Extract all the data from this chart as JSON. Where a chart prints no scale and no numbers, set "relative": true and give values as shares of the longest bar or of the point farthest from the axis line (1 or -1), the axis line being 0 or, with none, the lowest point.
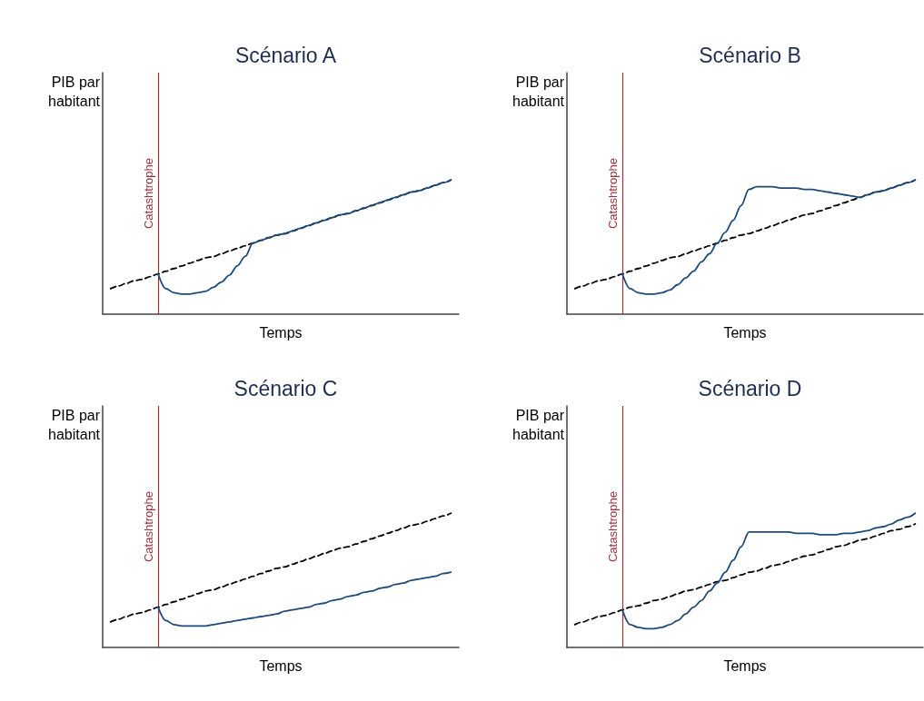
{
  "chart_data": [
    {
      "type": "line",
      "title": "Scénario A",
      "xlabel": "Temps",
      "ylabel": "PIB par\nhabitant",
      "relative": true,
      "marker": "none",
      "grid": false,
      "categories": [
        null,
        null,
        null,
        null,
        null,
        null,
        null,
        null,
        null,
        null,
        null,
        null,
        null,
        null,
        null,
        null,
        null,
        null,
        null,
        null,
        null,
        null,
        null,
        null,
        null,
        null,
        null,
        null,
        null,
        null,
        null,
        null,
        null,
        null,
        null,
        null,
        null,
        null,
        null,
        null,
        null,
        null,
        null,
        null,
        null,
        null
      ],
      "annotations": [
        "Catashtrophe"
      ],
      "series": [
        {
          "color": "#1d4a78",
          "line_style": "solid",
          "values": [
            null,
            null,
            null,
            null,
            null,
            null,
            null,
            0.3,
            0.19,
            0.16,
            0.15,
            0.15,
            0.16,
            0.17,
            0.2,
            0.24,
            0.29,
            0.36,
            0.43,
            0.53,
            0.55,
            0.57,
            0.59,
            0.6,
            0.62,
            0.64,
            0.66,
            0.68,
            0.7,
            0.72,
            0.74,
            0.75,
            0.77,
            0.79,
            0.81,
            0.83,
            0.85,
            0.87,
            0.89,
            0.91,
            0.92,
            0.94,
            0.96,
            0.98,
            1,
            null
          ]
        },
        {
          "color": "#000000",
          "line_style": "dashed",
          "values": [
            null,
            0.19,
            0.21,
            0.23,
            0.25,
            0.26,
            0.28,
            0.3,
            0.32,
            0.34,
            0.36,
            0.38,
            0.4,
            0.42,
            0.43,
            0.45,
            0.47,
            0.49,
            0.51,
            0.53,
            0.55,
            0.57,
            0.59,
            0.6,
            0.62,
            0.64,
            0.66,
            0.68,
            0.7,
            0.72,
            0.74,
            0.75,
            0.77,
            0.79,
            0.81,
            0.83,
            0.85,
            0.87,
            0.89,
            0.91,
            0.92,
            0.94,
            0.96,
            0.98,
            1,
            null
          ]
        }
      ]
    },
    {
      "type": "line",
      "title": "Scénario B",
      "xlabel": "Temps",
      "ylabel": "PIB par\nhabitant",
      "relative": true,
      "marker": "none",
      "grid": false,
      "categories": [
        null,
        null,
        null,
        null,
        null,
        null,
        null,
        null,
        null,
        null,
        null,
        null,
        null,
        null,
        null,
        null,
        null,
        null,
        null,
        null,
        null,
        null,
        null,
        null,
        null,
        null,
        null,
        null,
        null,
        null,
        null,
        null,
        null,
        null,
        null,
        null,
        null,
        null,
        null,
        null,
        null,
        null,
        null,
        null,
        null,
        null
      ],
      "annotations": [
        "Catashtrophe"
      ],
      "series": [
        {
          "color": "#1d4a78",
          "line_style": "solid",
          "values": [
            null,
            null,
            null,
            null,
            null,
            null,
            null,
            0.3,
            0.19,
            0.16,
            0.15,
            0.15,
            0.16,
            0.18,
            0.22,
            0.27,
            0.32,
            0.39,
            0.45,
            0.53,
            0.61,
            0.7,
            0.81,
            0.93,
            0.95,
            0.95,
            0.95,
            0.94,
            0.94,
            0.94,
            0.93,
            0.93,
            0.92,
            0.91,
            0.9,
            0.89,
            0.88,
            0.87,
            0.89,
            0.91,
            0.92,
            0.94,
            0.96,
            0.98,
            1,
            null
          ]
        },
        {
          "color": "#000000",
          "line_style": "dashed",
          "values": [
            null,
            0.19,
            0.21,
            0.23,
            0.25,
            0.26,
            0.28,
            0.3,
            0.32,
            0.34,
            0.36,
            0.38,
            0.4,
            0.42,
            0.43,
            0.45,
            0.47,
            0.49,
            0.51,
            0.53,
            0.55,
            0.57,
            0.59,
            0.6,
            0.62,
            0.64,
            0.66,
            0.68,
            0.7,
            0.72,
            0.74,
            0.75,
            0.77,
            0.79,
            0.81,
            0.83,
            0.85,
            0.87,
            0.89,
            0.91,
            0.92,
            0.94,
            0.96,
            0.98,
            1,
            null
          ]
        }
      ]
    },
    {
      "type": "line",
      "title": "Scénario C",
      "xlabel": "Temps",
      "ylabel": "PIB par\nhabitant",
      "relative": true,
      "marker": "none",
      "grid": false,
      "categories": [
        null,
        null,
        null,
        null,
        null,
        null,
        null,
        null,
        null,
        null,
        null,
        null,
        null,
        null,
        null,
        null,
        null,
        null,
        null,
        null,
        null,
        null,
        null,
        null,
        null,
        null,
        null,
        null,
        null,
        null,
        null,
        null,
        null,
        null,
        null,
        null,
        null,
        null,
        null,
        null,
        null,
        null,
        null,
        null,
        null,
        null
      ],
      "annotations": [
        "Catashtrophe"
      ],
      "series": [
        {
          "color": "#1d4a78",
          "line_style": "solid",
          "values": [
            null,
            null,
            null,
            null,
            null,
            null,
            null,
            0.3,
            0.2,
            0.17,
            0.16,
            0.16,
            0.16,
            0.16,
            0.17,
            0.18,
            0.19,
            0.2,
            0.21,
            0.22,
            0.23,
            0.24,
            0.25,
            0.27,
            0.28,
            0.29,
            0.3,
            0.32,
            0.33,
            0.35,
            0.36,
            0.38,
            0.39,
            0.41,
            0.42,
            0.44,
            0.45,
            0.47,
            0.48,
            0.5,
            0.51,
            0.52,
            0.53,
            0.55,
            0.56,
            null
          ]
        },
        {
          "color": "#000000",
          "line_style": "dashed",
          "values": [
            null,
            0.19,
            0.21,
            0.23,
            0.25,
            0.26,
            0.28,
            0.3,
            0.32,
            0.34,
            0.36,
            0.38,
            0.4,
            0.42,
            0.43,
            0.45,
            0.47,
            0.49,
            0.51,
            0.53,
            0.55,
            0.57,
            0.59,
            0.6,
            0.62,
            0.64,
            0.66,
            0.68,
            0.7,
            0.72,
            0.74,
            0.75,
            0.77,
            0.79,
            0.81,
            0.83,
            0.85,
            0.87,
            0.89,
            0.91,
            0.92,
            0.94,
            0.96,
            0.98,
            1,
            null
          ]
        }
      ]
    },
    {
      "type": "line",
      "title": "Scénario D",
      "xlabel": "Temps",
      "ylabel": "PIB par\nhabitant",
      "relative": true,
      "marker": "none",
      "grid": false,
      "categories": [
        null,
        null,
        null,
        null,
        null,
        null,
        null,
        null,
        null,
        null,
        null,
        null,
        null,
        null,
        null,
        null,
        null,
        null,
        null,
        null,
        null,
        null,
        null,
        null,
        null,
        null,
        null,
        null,
        null,
        null,
        null,
        null,
        null,
        null,
        null,
        null,
        null,
        null,
        null,
        null,
        null,
        null,
        null,
        null,
        null,
        null
      ],
      "annotations": [
        "Catashtrophe"
      ],
      "series": [
        {
          "color": "#1d4a78",
          "line_style": "solid",
          "values": [
            null,
            null,
            null,
            null,
            null,
            null,
            null,
            0.28,
            0.17,
            0.15,
            0.14,
            0.14,
            0.15,
            0.17,
            0.2,
            0.25,
            0.3,
            0.35,
            0.42,
            0.48,
            0.56,
            0.65,
            0.75,
            0.86,
            0.86,
            0.86,
            0.86,
            0.86,
            0.86,
            0.85,
            0.85,
            0.85,
            0.84,
            0.84,
            0.84,
            0.85,
            0.85,
            0.86,
            0.87,
            0.89,
            0.9,
            0.92,
            0.95,
            0.97,
            1,
            null
          ]
        },
        {
          "color": "#000000",
          "line_style": "dashed",
          "values": [
            null,
            0.17,
            0.19,
            0.21,
            0.23,
            0.24,
            0.26,
            0.28,
            0.3,
            0.31,
            0.33,
            0.35,
            0.36,
            0.38,
            0.4,
            0.42,
            0.43,
            0.45,
            0.47,
            0.49,
            0.5,
            0.52,
            0.54,
            0.56,
            0.57,
            0.59,
            0.61,
            0.62,
            0.64,
            0.66,
            0.68,
            0.69,
            0.71,
            0.73,
            0.75,
            0.76,
            0.78,
            0.8,
            0.81,
            0.83,
            0.85,
            0.87,
            0.88,
            0.9,
            0.92,
            null
          ]
        }
      ]
    }
  ]
}
